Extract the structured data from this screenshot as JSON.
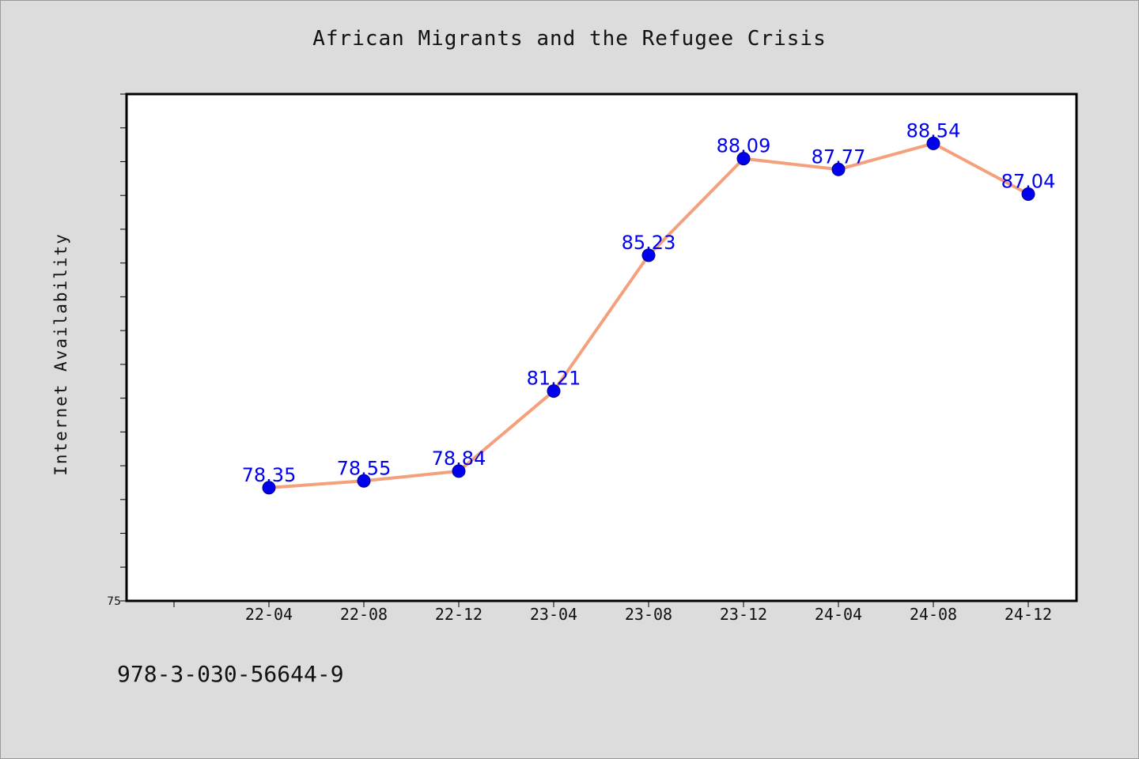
{
  "chart_data": {
    "type": "line",
    "title": "African Migrants and the Refugee Crisis",
    "xlabel": "",
    "ylabel": "Internet Availability",
    "categories": [
      "22-04",
      "22-08",
      "22-12",
      "23-04",
      "23-08",
      "23-12",
      "24-04",
      "24-08",
      "24-12"
    ],
    "series": [
      {
        "values": [
          78.35,
          78.55,
          78.84,
          81.21,
          85.23,
          88.09,
          87.77,
          88.54,
          87.04
        ]
      }
    ],
    "data_labels": [
      "78.35",
      "78.55",
      "78.84",
      "81.21",
      "85.23",
      "88.09",
      "87.77",
      "88.54",
      "87.04"
    ],
    "ylim": [
      75,
      90
    ],
    "y_tick_step": 1,
    "y_tick_labels": [
      "75"
    ],
    "grid": false,
    "legend": "none",
    "colors": {
      "line": "#f4a07c",
      "marker": "#0000ee",
      "label": "#0000ee",
      "plot_background": "#ffffff",
      "page_background": "#dcdcdc"
    }
  },
  "footer": {
    "isbn": "978-3-030-56644-9"
  }
}
